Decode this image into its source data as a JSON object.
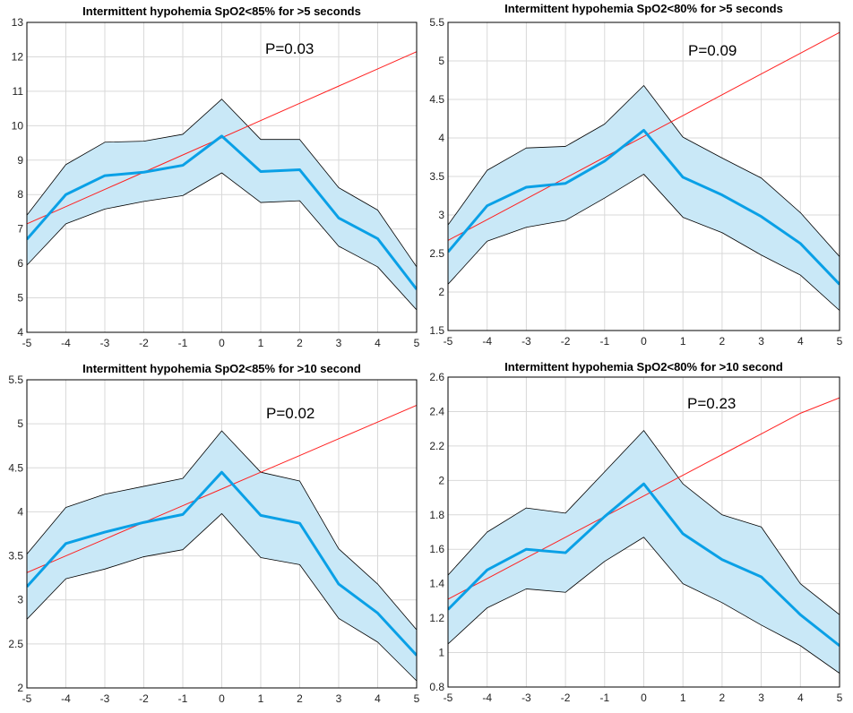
{
  "chart_data": [
    {
      "type": "line",
      "title": "Intermittent hypohemia SpO2<85% for >5 seconds",
      "annotation": "P=0.03",
      "x": [
        -5,
        -4,
        -3,
        -2,
        -1,
        0,
        1,
        2,
        3,
        4,
        5
      ],
      "xlim": [
        -5,
        5
      ],
      "ylim": [
        4,
        13
      ],
      "xticks": [
        -5,
        -4,
        -3,
        -2,
        -1,
        0,
        1,
        2,
        3,
        4,
        5
      ],
      "yticks": [
        4,
        5,
        6,
        7,
        8,
        9,
        10,
        11,
        12,
        13
      ],
      "grid": true,
      "series": [
        {
          "role": "mean",
          "color": "#0aa0e6",
          "values": [
            6.7,
            8.0,
            8.55,
            8.65,
            8.85,
            9.7,
            8.67,
            8.72,
            7.32,
            6.72,
            5.25
          ]
        },
        {
          "role": "upper",
          "color": "#000000",
          "values": [
            7.4,
            8.87,
            9.52,
            9.55,
            9.75,
            10.77,
            9.6,
            9.6,
            8.2,
            7.55,
            5.9
          ]
        },
        {
          "role": "lower",
          "color": "#000000",
          "values": [
            5.95,
            7.15,
            7.58,
            7.8,
            7.97,
            8.63,
            7.77,
            7.82,
            6.5,
            5.9,
            4.65
          ]
        },
        {
          "role": "trend",
          "color": "#ff2020",
          "values": [
            7.15,
            7.65,
            8.15,
            8.65,
            9.15,
            9.65,
            10.15,
            10.65,
            11.15,
            11.65,
            12.15
          ]
        }
      ]
    },
    {
      "type": "line",
      "title": "Intermittent hypohemia SpO2<80% for >5 seconds",
      "annotation": "P=0.09",
      "x": [
        -5,
        -4,
        -3,
        -2,
        -1,
        0,
        1,
        2,
        3,
        4,
        5
      ],
      "xlim": [
        -5,
        5
      ],
      "ylim": [
        1.5,
        5.5
      ],
      "xticks": [
        -5,
        -4,
        -3,
        -2,
        -1,
        0,
        1,
        2,
        3,
        4,
        5
      ],
      "yticks": [
        1.5,
        2,
        2.5,
        3,
        3.5,
        4,
        4.5,
        5,
        5.5
      ],
      "grid": true,
      "series": [
        {
          "role": "mean",
          "color": "#0aa0e6",
          "values": [
            2.52,
            3.12,
            3.36,
            3.41,
            3.7,
            4.1,
            3.49,
            3.26,
            2.98,
            2.63,
            2.1
          ]
        },
        {
          "role": "upper",
          "color": "#000000",
          "values": [
            2.87,
            3.58,
            3.87,
            3.89,
            4.18,
            4.68,
            4.01,
            3.74,
            3.48,
            3.03,
            2.46
          ]
        },
        {
          "role": "lower",
          "color": "#000000",
          "values": [
            2.1,
            2.66,
            2.84,
            2.93,
            3.22,
            3.53,
            2.97,
            2.77,
            2.48,
            2.22,
            1.76
          ]
        },
        {
          "role": "trend",
          "color": "#ff2020",
          "values": [
            2.67,
            2.94,
            3.21,
            3.48,
            3.75,
            4.02,
            4.29,
            4.56,
            4.83,
            5.1,
            5.37
          ]
        }
      ]
    },
    {
      "type": "line",
      "title": "Intermittent hypohemia SpO2<85% for >10 second",
      "annotation": "P=0.02",
      "x": [
        -5,
        -4,
        -3,
        -2,
        -1,
        0,
        1,
        2,
        3,
        4,
        5
      ],
      "xlim": [
        -5,
        5
      ],
      "ylim": [
        2,
        5.5
      ],
      "xticks": [
        -5,
        -4,
        -3,
        -2,
        -1,
        0,
        1,
        2,
        3,
        4,
        5
      ],
      "yticks": [
        2,
        2.5,
        3,
        3.5,
        4,
        4.5,
        5,
        5.5
      ],
      "grid": true,
      "series": [
        {
          "role": "mean",
          "color": "#0aa0e6",
          "values": [
            3.15,
            3.64,
            3.77,
            3.88,
            3.97,
            4.45,
            3.96,
            3.87,
            3.18,
            2.85,
            2.37
          ]
        },
        {
          "role": "upper",
          "color": "#000000",
          "values": [
            3.52,
            4.05,
            4.2,
            4.29,
            4.38,
            4.92,
            4.45,
            4.35,
            3.58,
            3.18,
            2.66
          ]
        },
        {
          "role": "lower",
          "color": "#000000",
          "values": [
            2.78,
            3.24,
            3.35,
            3.49,
            3.57,
            3.98,
            3.48,
            3.4,
            2.79,
            2.52,
            2.08
          ]
        },
        {
          "role": "trend",
          "color": "#ff2020",
          "values": [
            3.31,
            3.5,
            3.69,
            3.88,
            4.07,
            4.26,
            4.45,
            4.64,
            4.83,
            5.02,
            5.21
          ]
        }
      ]
    },
    {
      "type": "line",
      "title": "Intermittent hypohemia SpO2<80% for >10 second",
      "annotation": "P=0.23",
      "x": [
        -5,
        -4,
        -3,
        -2,
        -1,
        0,
        1,
        2,
        3,
        4,
        5
      ],
      "xlim": [
        -5,
        5
      ],
      "ylim": [
        0.8,
        2.6
      ],
      "xticks": [
        -5,
        -4,
        -3,
        -2,
        -1,
        0,
        1,
        2,
        3,
        4,
        5
      ],
      "yticks": [
        0.8,
        1,
        1.2,
        1.4,
        1.6,
        1.8,
        2,
        2.2,
        2.4,
        2.6
      ],
      "grid": true,
      "series": [
        {
          "role": "mean",
          "color": "#0aa0e6",
          "values": [
            1.25,
            1.48,
            1.6,
            1.58,
            1.79,
            1.98,
            1.69,
            1.54,
            1.44,
            1.22,
            1.04
          ]
        },
        {
          "role": "upper",
          "color": "#000000",
          "values": [
            1.45,
            1.7,
            1.84,
            1.81,
            2.05,
            2.29,
            1.98,
            1.8,
            1.73,
            1.4,
            1.22
          ]
        },
        {
          "role": "lower",
          "color": "#000000",
          "values": [
            1.05,
            1.26,
            1.37,
            1.35,
            1.53,
            1.67,
            1.4,
            1.29,
            1.16,
            1.04,
            0.88
          ]
        },
        {
          "role": "trend",
          "color": "#ff2020",
          "values": [
            1.31,
            1.43,
            1.55,
            1.67,
            1.79,
            1.91,
            2.03,
            2.15,
            2.27,
            2.39,
            2.48
          ]
        }
      ]
    }
  ],
  "colors": {
    "band_fill": "#c9e8f7",
    "grid": "#d9d9d9",
    "axis": "#000000"
  }
}
